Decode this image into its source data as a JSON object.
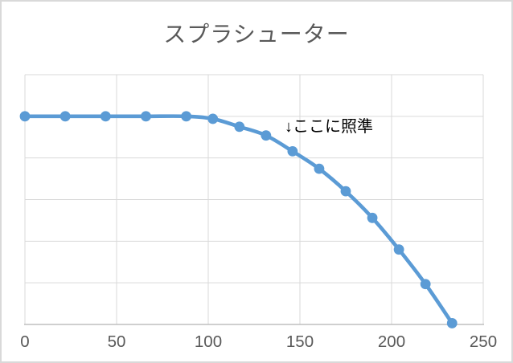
{
  "window": {
    "background": "#ffffff",
    "border_color": "#D9D9D9"
  },
  "chart_data": {
    "type": "line",
    "title": "スプラシューター",
    "series": [
      {
        "name": "スプラシューター",
        "x": [
          0,
          22,
          44,
          66,
          88,
          102.5,
          117,
          131.5,
          146,
          160.5,
          175,
          189.5,
          204,
          218.5,
          233
        ],
        "y": [
          5,
          5,
          5,
          5,
          5,
          4.94,
          4.75,
          4.54,
          4.16,
          3.74,
          3.2,
          2.56,
          1.8,
          0.97,
          0.03
        ]
      }
    ],
    "xlabel": "",
    "ylabel": "",
    "xlim": [
      0,
      250
    ],
    "ylim": [
      0,
      6
    ],
    "x_ticks": [
      0,
      50,
      100,
      150,
      200,
      250
    ],
    "x_tick_labels": [
      "0",
      "50",
      "100",
      "150",
      "200",
      "250"
    ],
    "y_tick_labels": [],
    "y_gridline_count": 7,
    "grid": true,
    "legend": "none",
    "smooth_line": true,
    "marker": "circle",
    "annotation": {
      "text": "↓ここに照準",
      "points_at_x": 146
    },
    "colors": {
      "line": "#5B9BD5",
      "marker": "#5B9BD5",
      "gridline": "#D9D9D9",
      "axis": "#BFBFBF",
      "title": "#595959",
      "tick_label": "#595959",
      "annotation": "#000000"
    }
  }
}
